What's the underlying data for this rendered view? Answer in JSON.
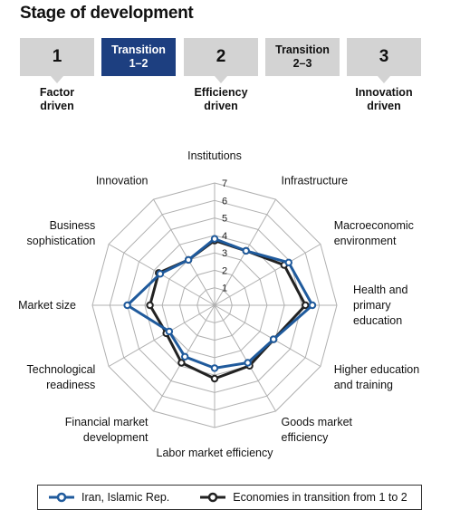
{
  "header": {
    "title": "Stage of development"
  },
  "stages": [
    {
      "label": "1",
      "caption": "Factor\ndriven",
      "active": false
    },
    {
      "label": "Transition\n1–2",
      "caption": "",
      "active": true
    },
    {
      "label": "2",
      "caption": "Efficiency\ndriven",
      "active": false
    },
    {
      "label": "Transition\n2–3",
      "caption": "",
      "active": false
    },
    {
      "label": "3",
      "caption": "Innovation\ndriven",
      "active": false
    }
  ],
  "colors": {
    "iran": "#1f5a9c",
    "transition": "#222222",
    "grid": "#b0b0b0",
    "stage_box": "#d3d3d3",
    "stage_active": "#1d3f80"
  },
  "chart_data": {
    "type": "radar",
    "title": "",
    "axes": [
      "Institutions",
      "Infrastructure",
      "Macroeconomic\nenvironment",
      "Health and\nprimary\neducation",
      "Higher education\nand training",
      "Goods market\nefficiency",
      "Labor market efficiency",
      "Financial market\ndevelopment",
      "Technological\nreadiness",
      "Market size",
      "Business\nsophistication",
      "Innovation"
    ],
    "scale": {
      "min": 1,
      "max": 7,
      "ticks": [
        "1",
        "2",
        "3",
        "4",
        "5",
        "6",
        "7"
      ]
    },
    "grid": true,
    "legend_position": "bottom",
    "series": [
      {
        "name": "Iran, Islamic Rep.",
        "values": [
          3.8,
          3.6,
          4.9,
          5.6,
          3.9,
          3.8,
          3.6,
          3.4,
          3.0,
          5.0,
          3.6,
          3.0
        ]
      },
      {
        "name": "Economies in transition from 1 to 2",
        "values": [
          3.7,
          3.6,
          4.6,
          5.2,
          3.9,
          4.0,
          4.2,
          3.8,
          3.2,
          3.7,
          3.7,
          3.0
        ]
      }
    ]
  }
}
